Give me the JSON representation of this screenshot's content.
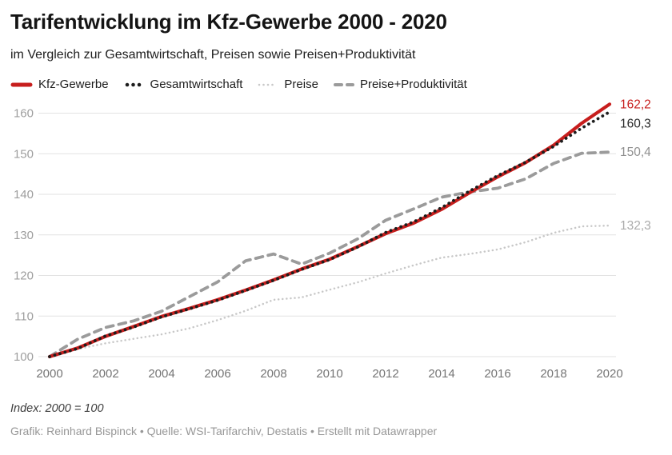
{
  "header": {
    "title": "Tarifentwicklung im Kfz-Gewerbe 2000 - 2020",
    "subtitle": "im Vergleich zur Gesamtwirtschaft, Preisen sowie Preisen+Produktivität"
  },
  "footer": {
    "note": "Index: 2000 = 100",
    "credit": "Grafik: Reinhard Bispinck • Quelle: WSI-Tarifarchiv, Destatis • Erstellt mit Datawrapper"
  },
  "colors": {
    "background": "#ffffff",
    "gridline": "#e2e2e2",
    "y_tick_label": "#9e9e9e",
    "x_tick_label": "#757575"
  },
  "chart_data": {
    "type": "line",
    "title": "Tarifentwicklung im Kfz-Gewerbe 2000 - 2020",
    "subtitle": "im Vergleich zur Gesamtwirtschaft, Preisen sowie Preisen+Produktivität",
    "note": "Index: 2000 = 100",
    "xlabel": "",
    "ylabel": "",
    "ylim": [
      100,
      163
    ],
    "yticks": [
      100,
      110,
      120,
      130,
      140,
      150,
      160
    ],
    "xticks": [
      2000,
      2002,
      2004,
      2006,
      2008,
      2010,
      2012,
      2014,
      2016,
      2018,
      2020
    ],
    "grid": "horizontal",
    "legend_position": "top",
    "x": [
      2000,
      2001,
      2002,
      2003,
      2004,
      2005,
      2006,
      2007,
      2008,
      2009,
      2010,
      2011,
      2012,
      2013,
      2014,
      2015,
      2016,
      2017,
      2018,
      2019,
      2020
    ],
    "series": [
      {
        "name": "Preise",
        "color": "#c8c8c8",
        "style": "fine-dotted",
        "width": 2.5,
        "end_label": "132,3",
        "end_label_color": "#ababab",
        "values": [
          100,
          101.9,
          103.3,
          104.4,
          105.5,
          107.0,
          109.0,
          111.3,
          114.0,
          114.6,
          116.5,
          118.3,
          120.5,
          122.5,
          124.4,
          125.3,
          126.4,
          128.2,
          130.5,
          132.1,
          132.3
        ]
      },
      {
        "name": "Preise+Produktivität",
        "color": "#9b9b9b",
        "style": "dashed",
        "width": 3.8,
        "end_label": "150,4",
        "end_label_color": "#8f8f8f",
        "values": [
          100,
          104.3,
          107.2,
          108.8,
          111.2,
          114.8,
          118.4,
          123.6,
          125.3,
          122.8,
          125.5,
          129.0,
          133.6,
          136.4,
          139.3,
          140.6,
          141.5,
          143.8,
          147.6,
          150.1,
          150.4
        ]
      },
      {
        "name": "Kfz-Gewerbe",
        "color": "#c71e1d",
        "style": "solid",
        "width": 4.2,
        "end_label": "162,2",
        "end_label_color": "#c71e1d",
        "values": [
          100,
          102.1,
          105.0,
          107.4,
          109.9,
          111.9,
          114.0,
          116.4,
          118.9,
          121.6,
          124.0,
          127.1,
          130.3,
          132.9,
          136.3,
          140.4,
          144.3,
          147.8,
          152.1,
          157.5,
          162.2
        ]
      },
      {
        "name": "Gesamtwirtschaft",
        "color": "#1d1d1d",
        "style": "dotted",
        "width": 3.8,
        "end_label": "160,3",
        "end_label_color": "#2a2a2a",
        "values": [
          100,
          102.0,
          105.1,
          107.3,
          109.8,
          111.8,
          113.9,
          116.3,
          118.8,
          121.5,
          123.9,
          127.0,
          130.6,
          133.2,
          136.7,
          140.8,
          144.6,
          147.9,
          151.8,
          156.3,
          160.3
        ]
      }
    ],
    "legend_order": [
      "Kfz-Gewerbe",
      "Gesamtwirtschaft",
      "Preise",
      "Preise+Produktivität"
    ]
  }
}
